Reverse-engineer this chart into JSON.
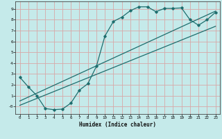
{
  "xlabel": "Humidex (Indice chaleur)",
  "bg_color": "#c5eaea",
  "grid_color": "#d8a8a8",
  "line_color": "#1e6e6e",
  "xlim": [
    -0.5,
    23.5
  ],
  "ylim": [
    -0.7,
    9.7
  ],
  "xticks": [
    0,
    1,
    2,
    3,
    4,
    5,
    6,
    7,
    8,
    9,
    10,
    11,
    12,
    13,
    14,
    15,
    16,
    17,
    18,
    19,
    20,
    21,
    22,
    23
  ],
  "xtick_labels": [
    "0",
    "1",
    "2",
    "3",
    "4",
    "5",
    "6",
    "7",
    "8",
    "9",
    "10",
    "11",
    "12",
    "13",
    "14",
    "15",
    "16",
    "17",
    "18",
    "19",
    "20",
    "21",
    "22",
    "23"
  ],
  "yticks": [
    0,
    1,
    2,
    3,
    4,
    5,
    6,
    7,
    8,
    9
  ],
  "ytick_labels": [
    "-0",
    "1",
    "2",
    "3",
    "4",
    "5",
    "6",
    "7",
    "8",
    "9"
  ],
  "line1_x": [
    0,
    1,
    2,
    3,
    4,
    5,
    6,
    7,
    8,
    9,
    10,
    11,
    12,
    13,
    14,
    15,
    16,
    17,
    18,
    19,
    20,
    21,
    22,
    23
  ],
  "line1_y": [
    2.7,
    1.8,
    1.0,
    -0.2,
    -0.3,
    -0.25,
    0.3,
    1.5,
    2.1,
    3.7,
    6.5,
    7.85,
    8.25,
    8.85,
    9.2,
    9.2,
    8.75,
    9.05,
    9.05,
    9.1,
    8.0,
    7.5,
    8.0,
    8.7
  ],
  "line2_x": [
    0,
    23
  ],
  "line2_y": [
    0.5,
    8.8
  ],
  "line3_x": [
    0,
    23
  ],
  "line3_y": [
    0.1,
    7.4
  ]
}
